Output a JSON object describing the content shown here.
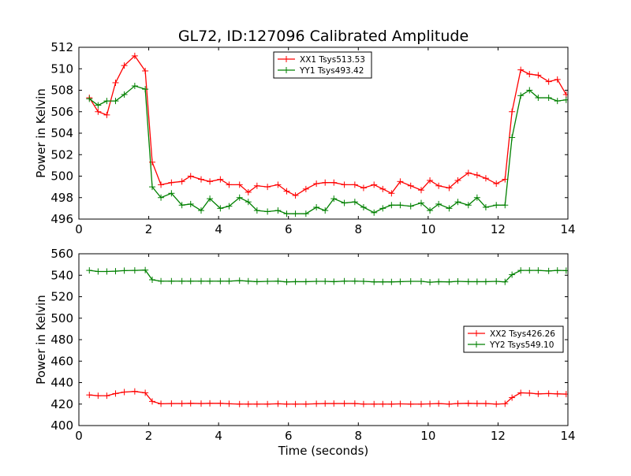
{
  "figure": {
    "title": "GL72, ID:127096 Calibrated Amplitude"
  },
  "chart_data": [
    {
      "type": "line",
      "title": "GL72, ID:127096 Calibrated Amplitude",
      "xlabel": "",
      "ylabel": "Power in Kelvin",
      "xlim": [
        0,
        14
      ],
      "ylim": [
        496,
        512
      ],
      "xticks": [
        0,
        2,
        4,
        6,
        8,
        10,
        12,
        14
      ],
      "yticks": [
        496,
        498,
        500,
        502,
        504,
        506,
        508,
        510,
        512
      ],
      "grid": false,
      "legend_position": "top-center",
      "marker": "+",
      "x": [
        0.3,
        0.55,
        0.8,
        1.05,
        1.3,
        1.6,
        1.9,
        2.1,
        2.35,
        2.65,
        2.95,
        3.2,
        3.5,
        3.75,
        4.05,
        4.3,
        4.6,
        4.85,
        5.1,
        5.4,
        5.7,
        5.95,
        6.2,
        6.5,
        6.8,
        7.05,
        7.3,
        7.6,
        7.9,
        8.15,
        8.45,
        8.7,
        8.95,
        9.2,
        9.5,
        9.8,
        10.05,
        10.3,
        10.6,
        10.85,
        11.15,
        11.4,
        11.65,
        11.95,
        12.2,
        12.4,
        12.65,
        12.9,
        13.15,
        13.45,
        13.7,
        13.95
      ],
      "series": [
        {
          "name": "XX1 Tsys513.53",
          "color": "#ff0000",
          "values": [
            507.3,
            506.0,
            505.7,
            508.7,
            510.3,
            511.2,
            509.8,
            501.3,
            499.2,
            499.4,
            499.5,
            500.0,
            499.7,
            499.5,
            499.7,
            499.2,
            499.2,
            498.5,
            499.1,
            499.0,
            499.2,
            498.6,
            498.2,
            498.8,
            499.3,
            499.4,
            499.4,
            499.2,
            499.2,
            498.9,
            499.2,
            498.8,
            498.4,
            499.5,
            499.1,
            498.7,
            499.6,
            499.1,
            498.9,
            499.6,
            500.3,
            500.1,
            499.8,
            499.3,
            499.7,
            506.0,
            509.9,
            509.5,
            509.4,
            508.8,
            509.0,
            507.6
          ]
        },
        {
          "name": "YY1 Tsys493.42",
          "color": "#008000",
          "values": [
            507.2,
            506.6,
            507.0,
            507.0,
            507.6,
            508.4,
            508.1,
            499.0,
            498.0,
            498.4,
            497.3,
            497.4,
            496.8,
            497.9,
            497.0,
            497.2,
            498.0,
            497.6,
            496.8,
            496.7,
            496.8,
            496.5,
            496.5,
            496.5,
            497.1,
            496.8,
            497.9,
            497.5,
            497.6,
            497.1,
            496.6,
            497.0,
            497.3,
            497.3,
            497.2,
            497.5,
            496.8,
            497.4,
            497.0,
            497.6,
            497.3,
            498.0,
            497.1,
            497.3,
            497.3,
            503.6,
            507.5,
            508.0,
            507.3,
            507.3,
            507.0,
            507.1
          ]
        }
      ]
    },
    {
      "type": "line",
      "title": "",
      "xlabel": "Time (seconds)",
      "ylabel": "Power in Kelvin",
      "xlim": [
        0,
        14
      ],
      "ylim": [
        400,
        560
      ],
      "xticks": [
        0,
        2,
        4,
        6,
        8,
        10,
        12,
        14
      ],
      "yticks": [
        400,
        420,
        440,
        460,
        480,
        500,
        520,
        540,
        560
      ],
      "grid": false,
      "legend_position": "center-right",
      "marker": "+",
      "x": [
        0.3,
        0.55,
        0.8,
        1.05,
        1.3,
        1.6,
        1.9,
        2.1,
        2.35,
        2.65,
        2.95,
        3.2,
        3.5,
        3.75,
        4.05,
        4.3,
        4.6,
        4.85,
        5.1,
        5.4,
        5.7,
        5.95,
        6.2,
        6.5,
        6.8,
        7.05,
        7.3,
        7.6,
        7.9,
        8.15,
        8.45,
        8.7,
        8.95,
        9.2,
        9.5,
        9.8,
        10.05,
        10.3,
        10.6,
        10.85,
        11.15,
        11.4,
        11.65,
        11.95,
        12.2,
        12.4,
        12.65,
        12.9,
        13.15,
        13.45,
        13.7,
        13.95
      ],
      "series": [
        {
          "name": "XX2 Tsys426.26",
          "color": "#ff0000",
          "values": [
            428.5,
            427.8,
            427.8,
            429.8,
            431.2,
            431.8,
            430.5,
            422.5,
            420.3,
            420.5,
            420.5,
            420.7,
            420.5,
            420.7,
            420.7,
            420.3,
            420.0,
            420.0,
            420.0,
            420.0,
            420.3,
            420.0,
            420.0,
            420.0,
            420.3,
            420.5,
            420.5,
            420.5,
            420.5,
            420.0,
            420.0,
            420.0,
            420.0,
            420.2,
            420.0,
            420.0,
            420.2,
            420.5,
            420.0,
            420.5,
            420.7,
            420.5,
            420.5,
            420.0,
            420.3,
            426.0,
            430.5,
            430.2,
            429.5,
            429.8,
            429.5,
            429.3
          ]
        },
        {
          "name": "YY2 Tsys549.10",
          "color": "#008000",
          "values": [
            544.5,
            543.5,
            543.5,
            543.8,
            544.3,
            544.5,
            544.8,
            535.8,
            534.5,
            534.5,
            534.5,
            534.5,
            534.5,
            534.5,
            534.5,
            534.5,
            535.0,
            534.5,
            534.0,
            534.3,
            534.5,
            533.8,
            534.0,
            534.0,
            534.3,
            534.3,
            534.0,
            534.5,
            534.5,
            534.3,
            533.8,
            533.8,
            533.8,
            534.0,
            534.3,
            534.3,
            533.5,
            534.0,
            533.8,
            534.3,
            534.0,
            534.0,
            534.0,
            534.3,
            533.8,
            540.5,
            544.5,
            544.5,
            544.5,
            544.0,
            544.5,
            544.3
          ]
        }
      ]
    }
  ]
}
